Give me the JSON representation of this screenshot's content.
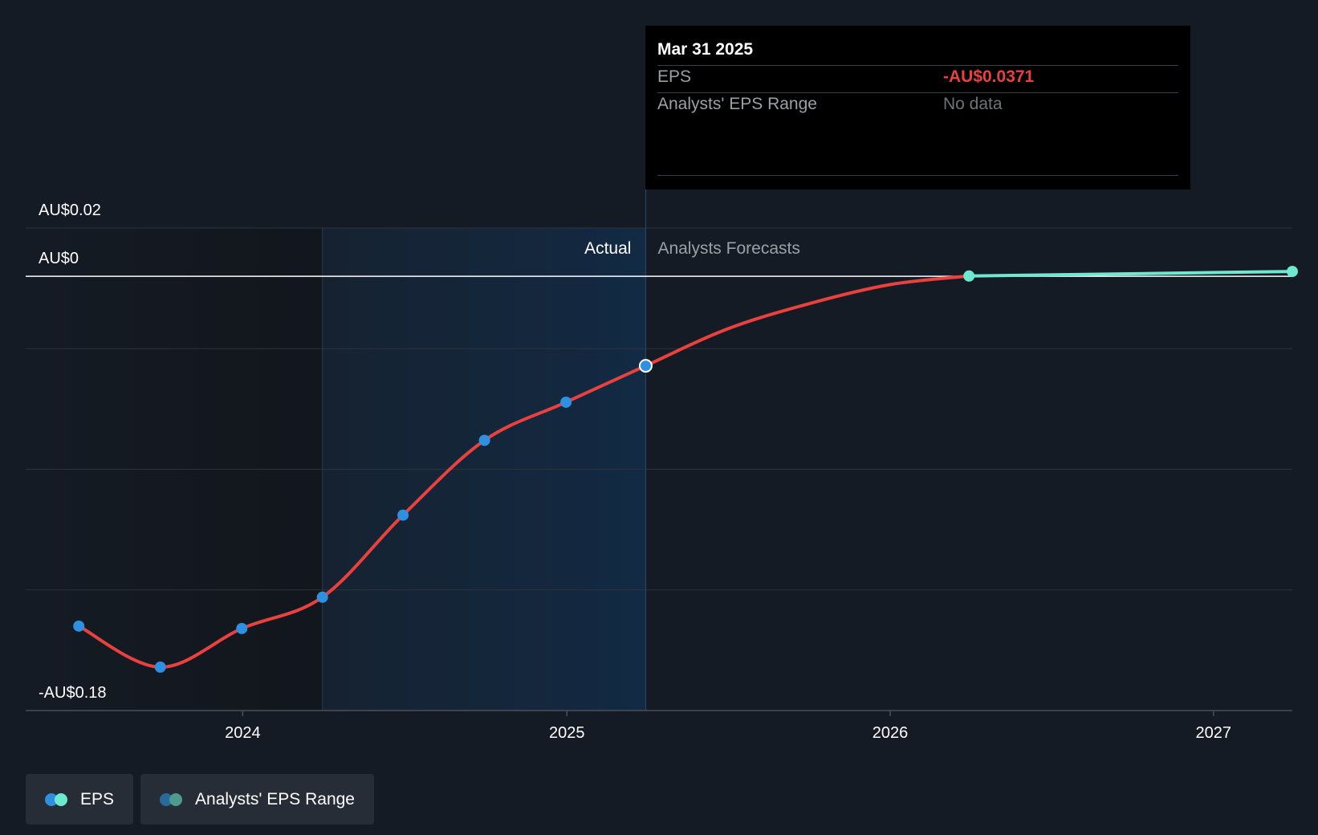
{
  "chart_data": {
    "type": "line",
    "title": "",
    "xlabel": "",
    "ylabel": "",
    "x_ticks": [
      "2024",
      "2025",
      "2026",
      "2027"
    ],
    "xlim": [
      "2023-05-01",
      "2027-03-31"
    ],
    "y_ticks": [
      {
        "value": 0.02,
        "label": "AU$0.02"
      },
      {
        "value": 0,
        "label": "AU$0"
      },
      {
        "value": -0.18,
        "label": "-AU$0.18"
      }
    ],
    "ylim": [
      -0.18,
      0.02
    ],
    "grid": true,
    "region_labels": {
      "actual": "Actual",
      "forecast": "Analysts Forecasts"
    },
    "actual_shaded_range": [
      "2024-03-31",
      "2025-03-31"
    ],
    "series": [
      {
        "name": "EPS",
        "role": "actual",
        "color": "#e8413e",
        "marker_color": "#2f8fe0",
        "points": [
          {
            "x": "2023-06-30",
            "y": -0.145
          },
          {
            "x": "2023-09-30",
            "y": -0.162
          },
          {
            "x": "2023-12-31",
            "y": -0.146
          },
          {
            "x": "2024-03-31",
            "y": -0.133
          },
          {
            "x": "2024-06-30",
            "y": -0.099
          },
          {
            "x": "2024-09-30",
            "y": -0.068
          },
          {
            "x": "2024-12-31",
            "y": -0.0522
          },
          {
            "x": "2025-03-31",
            "y": -0.0371
          }
        ]
      },
      {
        "name": "EPS",
        "role": "forecast",
        "color": "#e8413e",
        "points": [
          {
            "x": "2025-03-31",
            "y": -0.0371
          },
          {
            "x": "2025-06-30",
            "y": -0.022
          },
          {
            "x": "2025-09-30",
            "y": -0.0115
          },
          {
            "x": "2025-12-31",
            "y": -0.0035
          },
          {
            "x": "2026-03-31",
            "y": 0.0001
          }
        ]
      },
      {
        "name": "Analysts' EPS Range",
        "role": "forecast-range",
        "color": "#6ee8d0",
        "points": [
          {
            "x": "2026-03-31",
            "y": 0.0001
          },
          {
            "x": "2027-03-31",
            "y": 0.002
          }
        ]
      }
    ],
    "tooltip": {
      "date": "Mar 31 2025",
      "rows": [
        {
          "label": "EPS",
          "value": "-AU$0.0371"
        },
        {
          "label": "Analysts' EPS Range",
          "value": "No data"
        }
      ]
    },
    "legend": [
      {
        "label": "EPS",
        "colors": [
          "#2f8fe0",
          "#6ee8d0"
        ]
      },
      {
        "label": "Analysts' EPS Range",
        "colors": [
          "#2a6a9a",
          "#4e9a8c"
        ]
      }
    ],
    "legend_position": "bottom-left"
  }
}
